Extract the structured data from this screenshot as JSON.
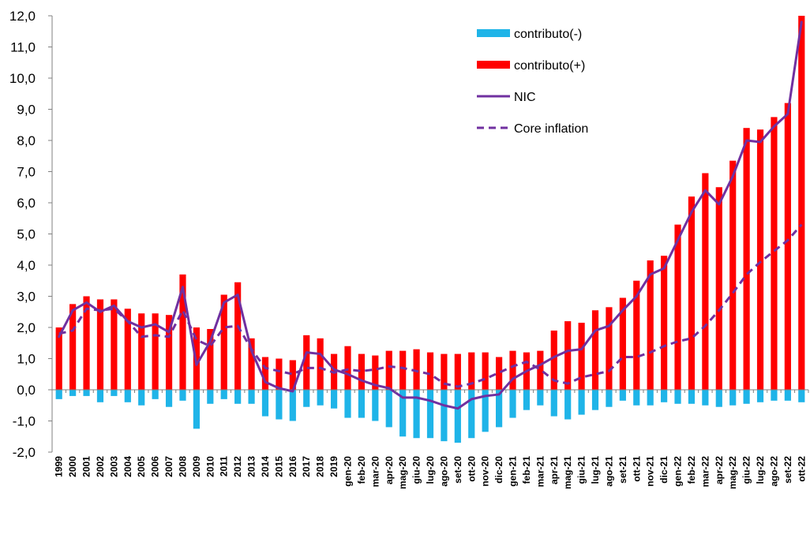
{
  "chart_data": {
    "type": "bar",
    "title": "",
    "xlabel": "",
    "ylabel": "",
    "ylim": [
      -2.0,
      12.0
    ],
    "yticks": [
      "-2,0",
      "-1,0",
      "0,0",
      "1,0",
      "2,0",
      "3,0",
      "4,0",
      "5,0",
      "6,0",
      "7,0",
      "8,0",
      "9,0",
      "10,0",
      "11,0",
      "12,0"
    ],
    "grid": false,
    "legend_position": "top-right",
    "categories": [
      "1999",
      "2000",
      "2001",
      "2002",
      "2003",
      "2004",
      "2005",
      "2006",
      "2007",
      "2008",
      "2009",
      "2010",
      "2011",
      "2012",
      "2013",
      "2014",
      "2015",
      "2016",
      "2017",
      "2018",
      "2019",
      "gen-20",
      "feb-20",
      "mar-20",
      "apr-20",
      "mag-20",
      "giu-20",
      "lug-20",
      "ago-20",
      "set-20",
      "ott-20",
      "nov-20",
      "dic-20",
      "gen-21",
      "feb-21",
      "mar-21",
      "apr-21",
      "mag-21",
      "giu-21",
      "lug-21",
      "ago-21",
      "set-21",
      "ott-21",
      "nov-21",
      "dic-21",
      "gen-22",
      "feb-22",
      "mar-22",
      "apr-22",
      "mag-22",
      "giu-22",
      "lug-22",
      "ago-22",
      "set-22",
      "ott-22"
    ],
    "series": [
      {
        "name": "contributo(-)",
        "kind": "bar",
        "color": "#1fb4e8",
        "values": [
          -0.3,
          -0.2,
          -0.2,
          -0.4,
          -0.2,
          -0.4,
          -0.5,
          -0.3,
          -0.55,
          -0.35,
          -1.25,
          -0.45,
          -0.3,
          -0.45,
          -0.45,
          -0.85,
          -0.95,
          -1.0,
          -0.55,
          -0.5,
          -0.6,
          -0.9,
          -0.9,
          -1.0,
          -1.2,
          -1.5,
          -1.55,
          -1.55,
          -1.65,
          -1.7,
          -1.55,
          -1.35,
          -1.2,
          -0.9,
          -0.65,
          -0.5,
          -0.85,
          -0.95,
          -0.8,
          -0.65,
          -0.55,
          -0.35,
          -0.5,
          -0.5,
          -0.4,
          -0.45,
          -0.45,
          -0.5,
          -0.55,
          -0.5,
          -0.45,
          -0.4,
          -0.35,
          -0.35,
          -0.4
        ]
      },
      {
        "name": "contributo(+)",
        "kind": "bar",
        "color": "#ff0000",
        "values": [
          2.0,
          2.75,
          3.0,
          2.9,
          2.9,
          2.6,
          2.45,
          2.45,
          2.4,
          3.7,
          2.0,
          1.95,
          3.05,
          3.45,
          1.65,
          1.05,
          1.0,
          0.95,
          1.75,
          1.65,
          1.15,
          1.4,
          1.15,
          1.1,
          1.25,
          1.25,
          1.3,
          1.2,
          1.15,
          1.15,
          1.2,
          1.2,
          1.05,
          1.25,
          1.2,
          1.25,
          1.9,
          2.2,
          2.15,
          2.55,
          2.65,
          2.95,
          3.5,
          4.15,
          4.3,
          5.3,
          6.2,
          6.95,
          6.5,
          7.35,
          8.4,
          8.35,
          8.75,
          9.2,
          12.0
        ]
      },
      {
        "name": "NIC",
        "kind": "line",
        "color": "#7030a0",
        "values": [
          1.7,
          2.55,
          2.8,
          2.5,
          2.7,
          2.2,
          2.0,
          2.1,
          1.85,
          3.3,
          0.8,
          1.55,
          2.8,
          3.05,
          1.25,
          0.25,
          0.05,
          -0.05,
          1.2,
          1.15,
          0.65,
          0.5,
          0.3,
          0.15,
          0.05,
          -0.25,
          -0.25,
          -0.35,
          -0.5,
          -0.6,
          -0.3,
          -0.2,
          -0.15,
          0.35,
          0.6,
          0.8,
          1.05,
          1.25,
          1.3,
          1.9,
          2.05,
          2.55,
          3.0,
          3.7,
          3.9,
          4.8,
          5.7,
          6.4,
          5.95,
          6.85,
          8.0,
          7.95,
          8.45,
          8.85,
          11.8
        ]
      },
      {
        "name": "Core inflation",
        "kind": "dashed-line",
        "color": "#7030a0",
        "values": [
          1.8,
          1.9,
          2.6,
          2.55,
          2.6,
          2.2,
          1.7,
          1.75,
          1.7,
          2.55,
          1.6,
          1.4,
          2.0,
          2.05,
          1.3,
          0.7,
          0.6,
          0.5,
          0.7,
          0.7,
          0.55,
          0.65,
          0.6,
          0.65,
          0.75,
          0.7,
          0.6,
          0.5,
          0.2,
          0.1,
          0.2,
          0.35,
          0.55,
          0.75,
          0.9,
          0.65,
          0.3,
          0.2,
          0.4,
          0.5,
          0.6,
          1.05,
          1.05,
          1.2,
          1.4,
          1.55,
          1.65,
          2.05,
          2.55,
          3.1,
          3.7,
          4.1,
          4.45,
          4.8,
          5.3
        ]
      }
    ]
  }
}
